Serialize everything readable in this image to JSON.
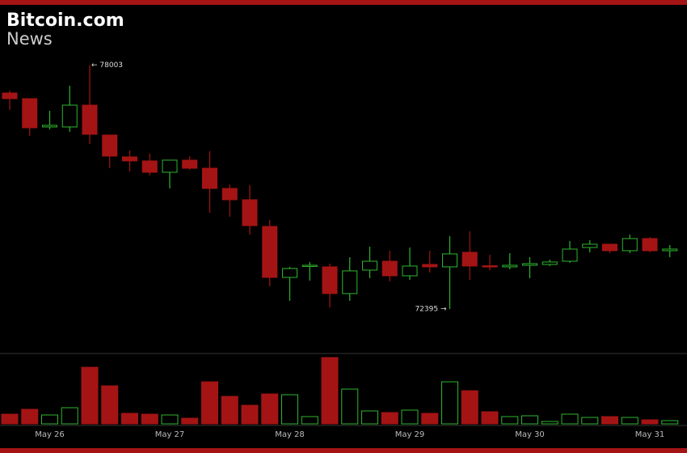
{
  "chart_data": {
    "type": "candlestick",
    "brand": {
      "name": "Bitcoin.com",
      "sub": "News"
    },
    "categories": [
      null,
      null,
      "May 26",
      null,
      null,
      null,
      null,
      null,
      "May 27",
      null,
      null,
      null,
      null,
      null,
      "May 28",
      null,
      null,
      null,
      null,
      null,
      "May 29",
      null,
      null,
      null,
      null,
      null,
      "May 30",
      null,
      null,
      null,
      null,
      null,
      "May 31",
      null
    ],
    "open": [
      77361,
      77231,
      76580,
      76580,
      77082,
      76394,
      75892,
      75799,
      75538,
      75817,
      75631,
      75166,
      74906,
      74292,
      73120,
      73381,
      73362,
      72748,
      73288,
      73492,
      73157,
      73418,
      73362,
      73697,
      73388,
      73362,
      73399,
      73418,
      73492,
      73808,
      73883,
      73734,
      74013,
      73734
    ],
    "close": [
      77231,
      76561,
      76617,
      77082,
      76412,
      75910,
      75799,
      75538,
      75817,
      75631,
      75166,
      74906,
      74311,
      73120,
      73325,
      73399,
      72748,
      73269,
      73492,
      73157,
      73381,
      73362,
      73660,
      73381,
      73362,
      73399,
      73436,
      73474,
      73771,
      73883,
      73734,
      74013,
      73734,
      73771
    ],
    "high": [
      77417,
      77231,
      76952,
      77528,
      78003,
      76394,
      76040,
      75966,
      75817,
      75910,
      76022,
      75259,
      75241,
      74441,
      73362,
      73474,
      73436,
      73585,
      73827,
      73734,
      73808,
      73734,
      74069,
      74180,
      73641,
      73678,
      73585,
      73529,
      73957,
      73976,
      73883,
      74106,
      74050,
      73864
    ],
    "low": [
      76970,
      76375,
      76524,
      76468,
      76189,
      75631,
      75557,
      75464,
      75166,
      75594,
      74608,
      74515,
      74106,
      72916,
      72581,
      73046,
      72432,
      72581,
      73102,
      73027,
      73064,
      73232,
      72395,
      73064,
      73288,
      73306,
      73102,
      73381,
      73455,
      73697,
      73678,
      73678,
      73697,
      73585
    ],
    "volume": [
      12,
      18,
      11,
      20,
      70,
      47,
      13,
      12,
      11,
      7,
      52,
      34,
      23,
      37,
      36,
      9,
      82,
      43,
      16,
      14,
      17,
      13,
      52,
      41,
      15,
      9,
      10,
      3,
      12,
      8,
      9,
      8,
      5,
      4
    ],
    "up_color": "#2fb52f",
    "down_color": "#a51414",
    "ylim": [
      71500,
      79500
    ],
    "volume_ylim": [
      0,
      90
    ],
    "annotations": [
      {
        "text": "← 78003",
        "index": 4,
        "at": "high"
      },
      {
        "text": "72395 →",
        "index": 22,
        "at": "low"
      }
    ]
  }
}
